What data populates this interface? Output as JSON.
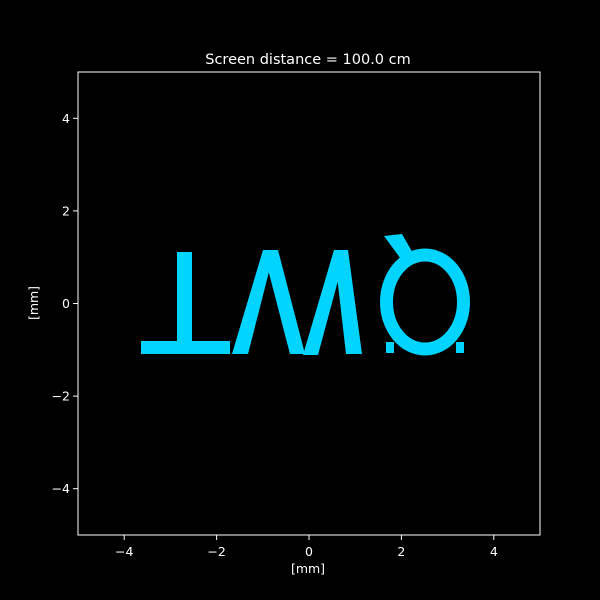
{
  "chart_data": {
    "type": "image",
    "title": "Screen distance = 100.0 cm",
    "xlabel": "[mm]",
    "ylabel": "[mm]",
    "xlim": [
      -5,
      5
    ],
    "ylim": [
      -5,
      5
    ],
    "xticks": [
      -4,
      -2,
      0,
      2,
      4
    ],
    "yticks": [
      -4,
      -2,
      0,
      2,
      4
    ],
    "grid": false,
    "background_color": "#000000",
    "pattern_color": "#00d4ff",
    "pattern_text": "⊥MỎ",
    "pattern_extent": {
      "x": [
        -3.6,
        3.5
      ],
      "y": [
        -1.1,
        1.5
      ]
    }
  }
}
